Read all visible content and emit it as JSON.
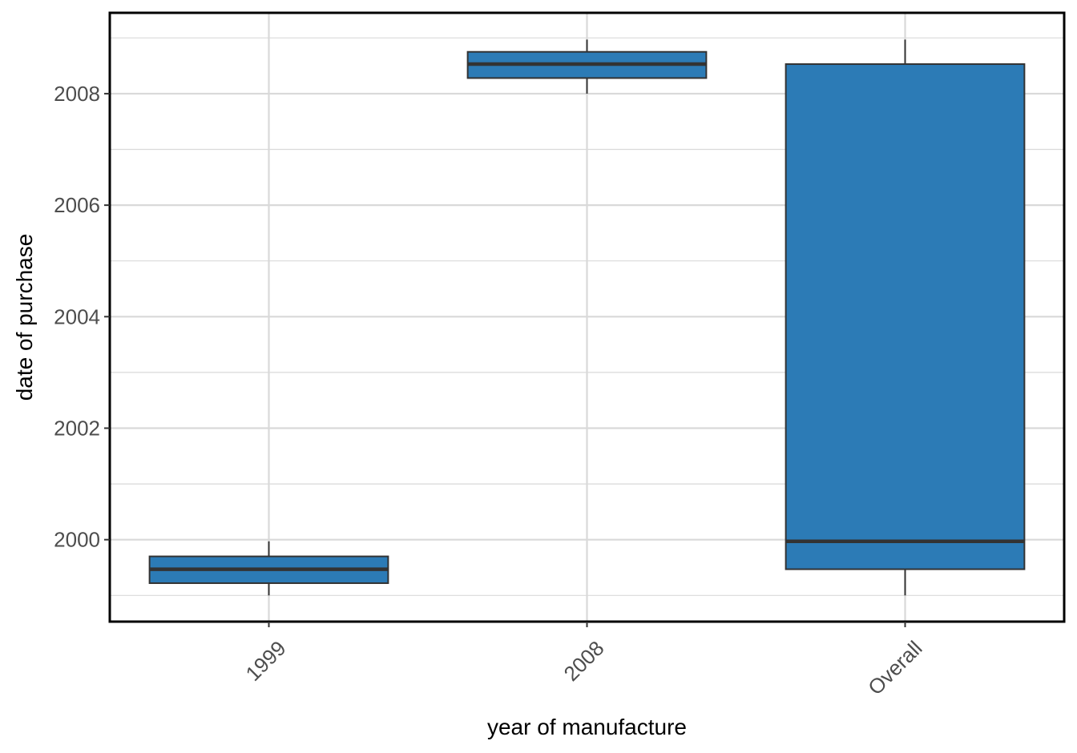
{
  "chart_data": {
    "type": "boxplot",
    "xlabel": "year of manufacture",
    "ylabel": "date of purchase",
    "categories": [
      "1999",
      "2008",
      "Overall"
    ],
    "boxes": [
      {
        "category": "1999",
        "whisker_low": 1999.0,
        "q1": 1999.22,
        "median": 1999.47,
        "q3": 1999.7,
        "whisker_high": 1999.97
      },
      {
        "category": "2008",
        "whisker_low": 2008.0,
        "q1": 2008.28,
        "median": 2008.53,
        "q3": 2008.75,
        "whisker_high": 2008.97
      },
      {
        "category": "Overall",
        "whisker_low": 1999.0,
        "q1": 1999.47,
        "median": 1999.97,
        "q3": 2008.53,
        "whisker_high": 2008.97
      }
    ],
    "yticks": [
      2000,
      2002,
      2004,
      2006,
      2008
    ],
    "ytick_labels": [
      "2000",
      "2002",
      "2004",
      "2006",
      "2008"
    ],
    "ylim": [
      1998.53,
      2009.45
    ],
    "grid": true,
    "colors": {
      "box_fill": "#2c7bb6",
      "box_line": "#333333",
      "grid": "#d9d9d9",
      "panel_border": "#000000"
    }
  }
}
